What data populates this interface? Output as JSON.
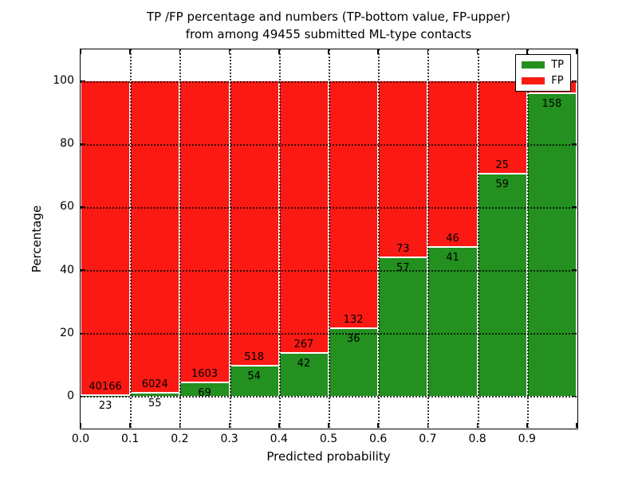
{
  "title": {
    "line1": "TP /FP percentage and numbers (TP-bottom value, FP-upper)",
    "line2": "from among 49455 submitted ML-type contacts"
  },
  "y_axis": {
    "label": "Percentage",
    "ticks": [
      {
        "v": 0,
        "label": "0"
      },
      {
        "v": 20,
        "label": "20"
      },
      {
        "v": 40,
        "label": "40"
      },
      {
        "v": 60,
        "label": "60"
      },
      {
        "v": 80,
        "label": "80"
      },
      {
        "v": 100,
        "label": "100"
      }
    ]
  },
  "x_axis": {
    "label": "Predicted probability",
    "ticks": [
      {
        "v": 0.0,
        "label": "0.0"
      },
      {
        "v": 0.1,
        "label": "0.1"
      },
      {
        "v": 0.2,
        "label": "0.2"
      },
      {
        "v": 0.3,
        "label": "0.3"
      },
      {
        "v": 0.4,
        "label": "0.4"
      },
      {
        "v": 0.5,
        "label": "0.5"
      },
      {
        "v": 0.6,
        "label": "0.6"
      },
      {
        "v": 0.7,
        "label": "0.7"
      },
      {
        "v": 0.8,
        "label": "0.8"
      },
      {
        "v": 0.9,
        "label": "0.9"
      },
      {
        "v": 1.0,
        "label": ""
      }
    ]
  },
  "legend": {
    "items": [
      {
        "label": "TP",
        "color": "#23901f"
      },
      {
        "label": "FP",
        "color": "#fa1a13"
      }
    ]
  },
  "chart_data": {
    "type": "bar",
    "stacked": true,
    "title": "TP /FP percentage and numbers (TP-bottom value, FP-upper) from among 49455 submitted ML-type contacts",
    "xlabel": "Predicted probability",
    "ylabel": "Percentage",
    "total_submitted": 49455,
    "xlim": [
      0.0,
      1.0
    ],
    "ylim": [
      -10,
      110
    ],
    "bin_width": 0.1,
    "grid": true,
    "legend_position": "upper right",
    "colors": {
      "tp": "#23901f",
      "fp": "#fa1a13"
    },
    "bins": [
      {
        "x_start": 0.0,
        "tp": 23,
        "fp": 40166,
        "tp_pct": 0.06
      },
      {
        "x_start": 0.1,
        "tp": 55,
        "fp": 6024,
        "tp_pct": 0.9
      },
      {
        "x_start": 0.2,
        "tp": 69,
        "fp": 1603,
        "tp_pct": 4.13
      },
      {
        "x_start": 0.3,
        "tp": 54,
        "fp": 518,
        "tp_pct": 9.44
      },
      {
        "x_start": 0.4,
        "tp": 42,
        "fp": 267,
        "tp_pct": 13.59
      },
      {
        "x_start": 0.5,
        "tp": 36,
        "fp": 132,
        "tp_pct": 21.43
      },
      {
        "x_start": 0.6,
        "tp": 57,
        "fp": 73,
        "tp_pct": 43.85
      },
      {
        "x_start": 0.7,
        "tp": 41,
        "fp": 46,
        "tp_pct": 47.13
      },
      {
        "x_start": 0.8,
        "tp": 59,
        "fp": 25,
        "tp_pct": 70.24
      },
      {
        "x_start": 0.9,
        "tp": 158,
        "fp": null,
        "tp_pct": 95.76
      }
    ]
  }
}
